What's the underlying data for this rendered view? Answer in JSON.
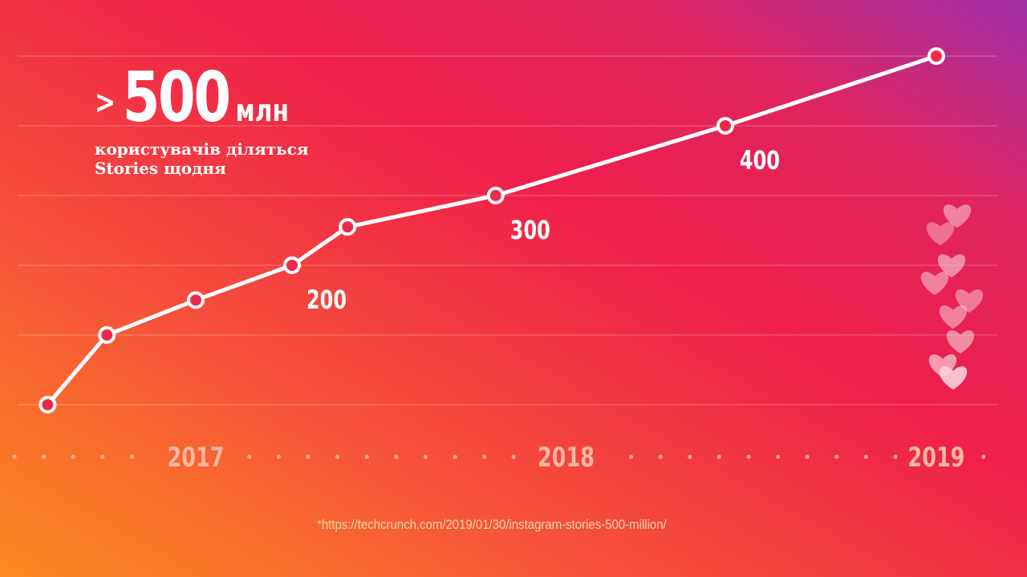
{
  "headline": {
    "prefix": ">",
    "value": "500",
    "unit": "млн"
  },
  "subtitle": {
    "line1": "користувачів діляться",
    "line2": "Stories щодня"
  },
  "footnote": "*https://techcrunch.com/2019/01/30/instagram-stories-500-million/",
  "chart_data": {
    "type": "line",
    "title": "> 500 млн користувачів діляться Stories щодня",
    "xlabel": "",
    "ylabel": "",
    "x": [
      2016.6,
      2016.76,
      2017.0,
      2017.26,
      2017.41,
      2017.81,
      2018.43,
      2019.0
    ],
    "values": [
      0,
      100,
      150,
      200,
      255,
      300,
      400,
      500
    ],
    "ylim": [
      0,
      500
    ],
    "xlim": [
      2016.53,
      2019.17
    ],
    "x_ticks": [
      {
        "value": 2017,
        "label": "2017"
      },
      {
        "value": 2018,
        "label": "2018"
      },
      {
        "value": 2019,
        "label": "2019"
      }
    ],
    "y_gridlines": [
      0,
      100,
      200,
      300,
      400,
      500
    ],
    "data_labels": [
      {
        "index": 3,
        "label": "200"
      },
      {
        "index": 5,
        "label": "300"
      },
      {
        "index": 6,
        "label": "400"
      }
    ],
    "grid": true,
    "colors": {
      "line": "#ffffff",
      "grid": "#ffffff",
      "tick": "#f9b7a0"
    }
  }
}
